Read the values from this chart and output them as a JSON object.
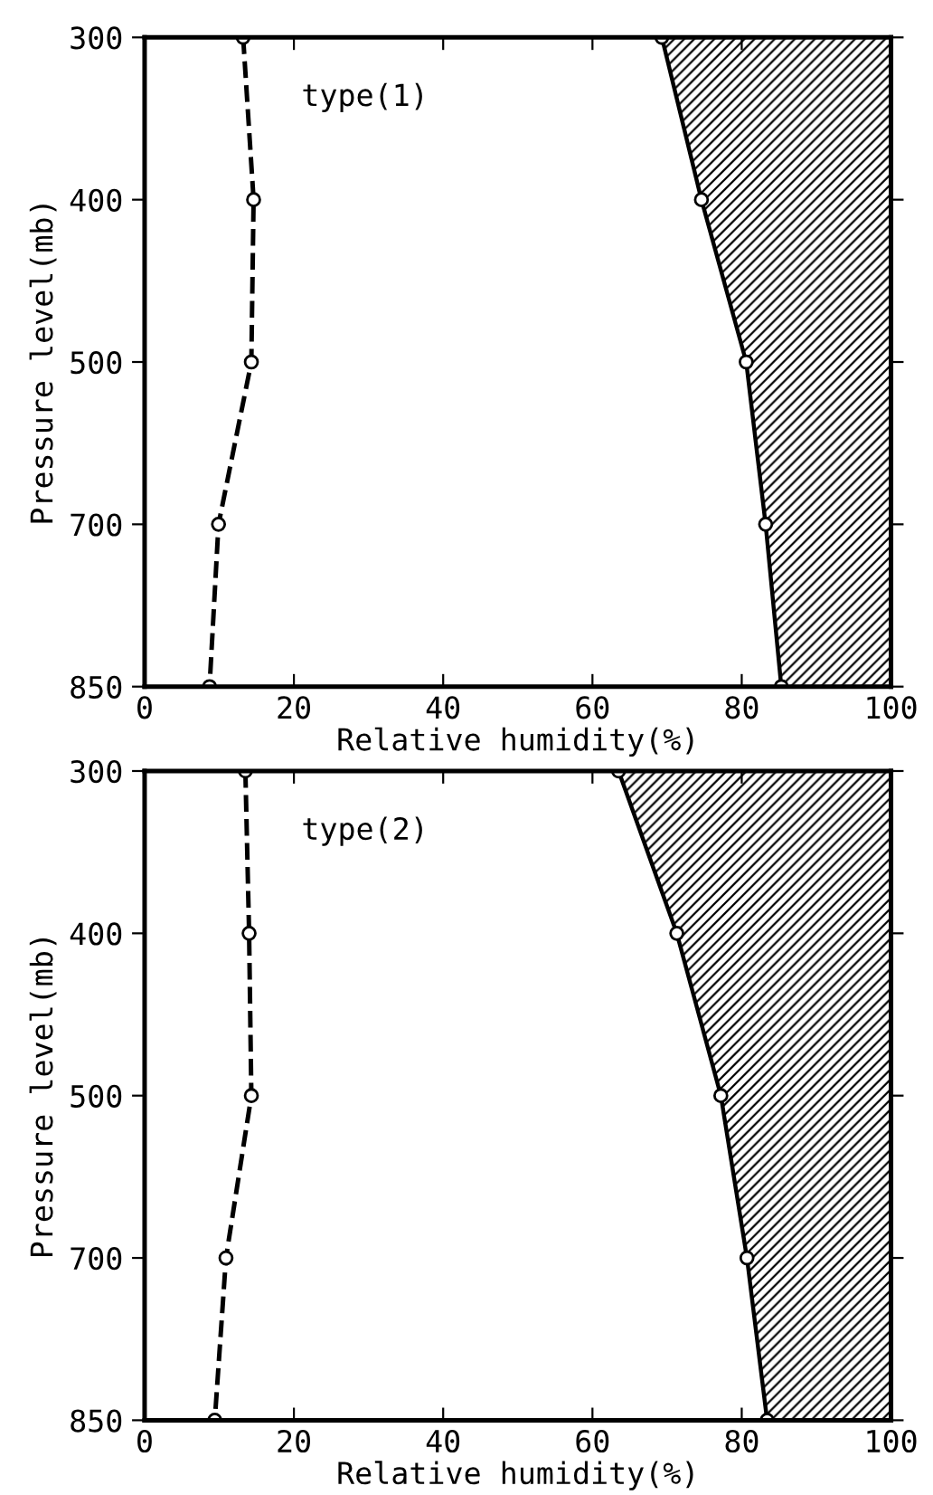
{
  "chart_data": [
    {
      "type": "line",
      "orientation": "horizontal",
      "categories": [
        "300",
        "400",
        "500",
        "700",
        "850"
      ],
      "xlim": [
        0,
        100
      ],
      "xticks": [
        0,
        20,
        40,
        60,
        80,
        100
      ],
      "xlabel": "Relative humidity(%)",
      "ylabel": "Pressure level(mb)",
      "annotations": [
        "type(1)"
      ],
      "marker": "circle",
      "grid": false,
      "legend": false,
      "series": [
        {
          "type": "line",
          "line_style": "dashed",
          "color": "#000000",
          "values": [
            13.2,
            14.6,
            14.3,
            9.9,
            8.7
          ]
        },
        {
          "type": "line",
          "line_style": "solid",
          "color": "#000000",
          "values": [
            69.3,
            74.6,
            80.6,
            83.2,
            85.3
          ]
        }
      ]
    },
    {
      "type": "line",
      "orientation": "horizontal",
      "categories": [
        "300",
        "400",
        "500",
        "700",
        "850"
      ],
      "xlim": [
        0,
        100
      ],
      "xticks": [
        0,
        20,
        40,
        60,
        80,
        100
      ],
      "xlabel": "Relative humidity(%)",
      "ylabel": "Pressure level(mb)",
      "annotations": [
        "type(2)"
      ],
      "marker": "circle",
      "grid": false,
      "legend": false,
      "series": [
        {
          "type": "line",
          "line_style": "dashed",
          "color": "#000000",
          "values": [
            13.5,
            14.0,
            14.3,
            10.9,
            9.4
          ]
        },
        {
          "type": "line",
          "line_style": "solid",
          "color": "#000000",
          "values": [
            63.5,
            71.3,
            77.2,
            80.7,
            83.4
          ]
        }
      ]
    }
  ]
}
